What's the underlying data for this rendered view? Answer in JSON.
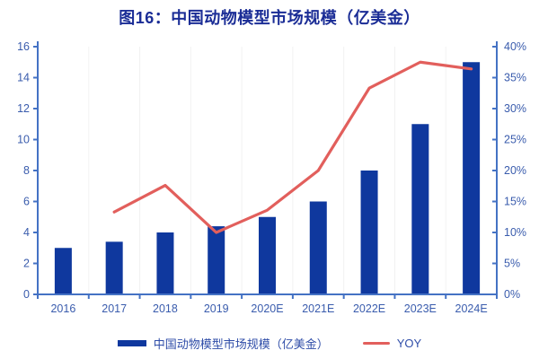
{
  "header": {
    "title": "图16：中国动物模型市场规模（亿美金）"
  },
  "chart_data": {
    "type": "bar+line",
    "title": "图16：中国动物模型市场规模（亿美金）",
    "categories": [
      "2016",
      "2017",
      "2018",
      "2019",
      "2020E",
      "2021E",
      "2022E",
      "2023E",
      "2024E"
    ],
    "series": [
      {
        "name": "中国动物模型市场规模（亿美金）",
        "type": "bar",
        "axis": "left",
        "values": [
          3,
          3.4,
          4,
          4.4,
          5,
          6,
          8,
          11,
          15
        ]
      },
      {
        "name": "YOY",
        "type": "line",
        "axis": "right",
        "unit": "%",
        "values": [
          null,
          13.3,
          17.6,
          10,
          13.6,
          20,
          33.3,
          37.5,
          36.4
        ]
      }
    ],
    "left_axis": {
      "min": 0,
      "max": 16,
      "step": 2,
      "tick_labels": [
        "0",
        "2",
        "4",
        "6",
        "8",
        "10",
        "12",
        "14",
        "16"
      ]
    },
    "right_axis": {
      "min": 0,
      "max": 40,
      "step": 5,
      "tick_labels": [
        "0%",
        "5%",
        "10%",
        "15%",
        "20%",
        "25%",
        "30%",
        "35%",
        "40%"
      ]
    },
    "legend_position": "bottom-center",
    "grid": "faint-vertical",
    "colors": {
      "bar": "#0F389E",
      "line": "#E25F5C",
      "axis": "#4472C4",
      "tick_label": "#3A5CAD",
      "title": "#1B2D96",
      "legend_text": "#2F4DA8",
      "gridline": "#F2F2F2",
      "background": "#FFFFFF"
    }
  }
}
